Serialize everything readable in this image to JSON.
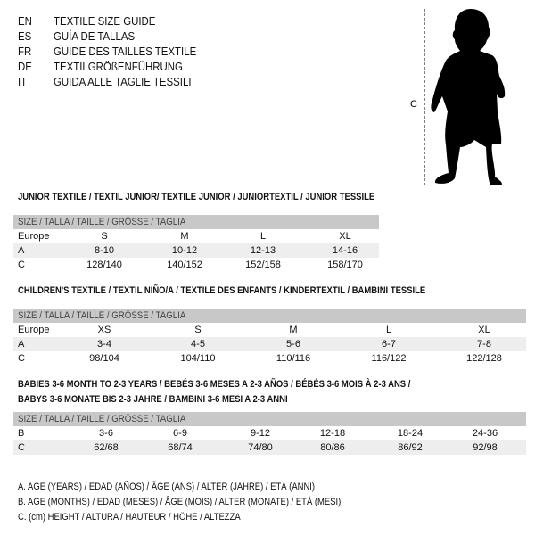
{
  "languages": [
    {
      "code": "EN",
      "title": "TEXTILE SIZE GUIDE"
    },
    {
      "code": "ES",
      "title": "GUÍA DE TALLAS"
    },
    {
      "code": "FR",
      "title": "GUIDE DES TAILLES TEXTILE"
    },
    {
      "code": "DE",
      "title": "TEXTILGRÖßENFÜHRUNG"
    },
    {
      "code": "IT",
      "title": "GUIDA ALLE TAGLIE TESSILI"
    }
  ],
  "figure": {
    "measure_label": "C"
  },
  "size_header": "SIZE / TALLA / TAILLE / GRÖSSE / TAGLIA",
  "tables": [
    {
      "title": "JUNIOR TEXTILE / TEXTIL JUNIOR/ TEXTILE JUNIOR / JUNIORTEXTIL / JUNIOR TESSILE",
      "rows": [
        {
          "label": "Europe",
          "values": [
            "S",
            "M",
            "L",
            "XL"
          ]
        },
        {
          "label": "A",
          "values": [
            "8-10",
            "10-12",
            "12-13",
            "14-16"
          ]
        },
        {
          "label": "C",
          "values": [
            "128/140",
            "140/152",
            "152/158",
            "158/170"
          ]
        }
      ]
    },
    {
      "title": "CHILDREN'S TEXTILE / TEXTIL NIÑO/A / TEXTILE DES ENFANTS / KINDERTEXTIL / BAMBINI TESSILE",
      "rows": [
        {
          "label": "Europe",
          "values": [
            "XS",
            "S",
            "M",
            "L",
            "XL"
          ]
        },
        {
          "label": "A",
          "values": [
            "3-4",
            "4-5",
            "5-6",
            "6-7",
            "7-8"
          ]
        },
        {
          "label": "C",
          "values": [
            "98/104",
            "104/110",
            "110/116",
            "116/122",
            "122/128"
          ]
        }
      ]
    },
    {
      "title": "BABIES 3-6 MONTH TO 2-3 YEARS / BEBÉS 3-6 MESES A 2-3 AÑOS / BÉBÉS 3-6 MOIS À 2-3 ANS /",
      "title2": "BABYS 3-6 MONATE BIS 2-3 JAHRE / BAMBINI 3-6 MESI A 2-3 ANNI",
      "rows": [
        {
          "label": "B",
          "values": [
            "3-6",
            "6-9",
            "9-12",
            "12-18",
            "18-24",
            "24-36"
          ]
        },
        {
          "label": "C",
          "values": [
            "62/68",
            "68/74",
            "74/80",
            "80/86",
            "86/92",
            "92/98"
          ]
        }
      ]
    }
  ],
  "legend": [
    "A. AGE (YEARS) / EDAD (AÑOS) / ÂGE (ANS) / ALTER (JAHRE) / ETÀ (ANNI)",
    "B. AGE (MONTHS) / EDAD (MESES) / ÂGE (MOIS) / ALTER (MONATE) / ETÀ (MESI)",
    "C. (cm) HEIGHT / ALTURA / HAUTEUR / HÖHE / ALTEZZA"
  ]
}
